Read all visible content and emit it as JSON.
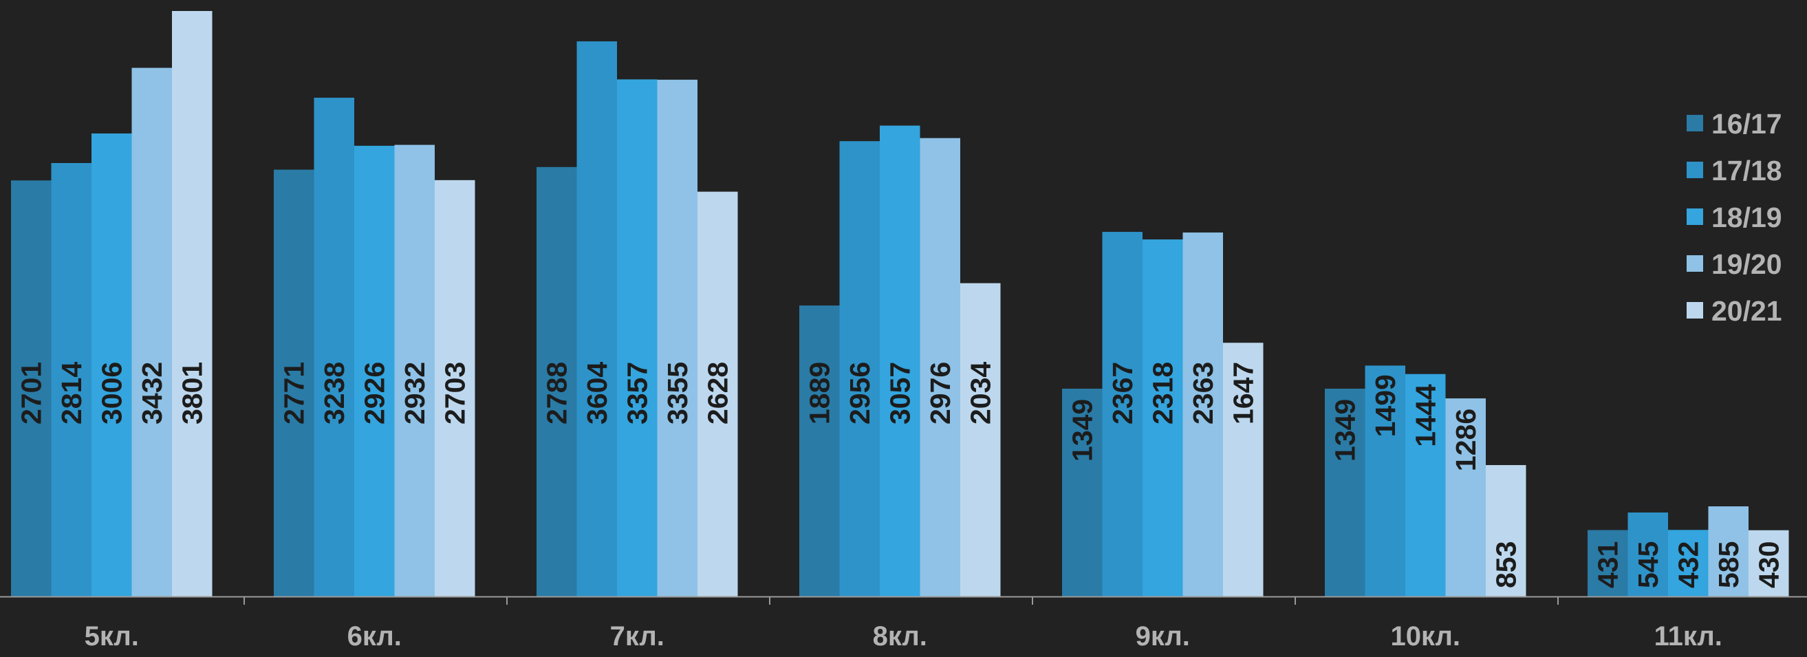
{
  "chart_data": {
    "type": "bar",
    "categories": [
      "5кл.",
      "6кл.",
      "7кл.",
      "8кл.",
      "9кл.",
      "10кл.",
      "11кл."
    ],
    "series": [
      {
        "name": "16/17",
        "color": "#2a7ba6",
        "values": [
          2701,
          2771,
          2788,
          1889,
          1349,
          1349,
          431
        ]
      },
      {
        "name": "17/18",
        "color": "#2e93c9",
        "values": [
          2814,
          3238,
          3604,
          2956,
          2367,
          1499,
          545
        ]
      },
      {
        "name": "18/19",
        "color": "#34a5de",
        "values": [
          3006,
          2926,
          3357,
          3057,
          2318,
          1444,
          432
        ]
      },
      {
        "name": "19/20",
        "color": "#8fc2e6",
        "values": [
          3432,
          2932,
          3355,
          2976,
          2363,
          1286,
          585
        ]
      },
      {
        "name": "20/21",
        "color": "#bdd8ee",
        "values": [
          3801,
          2703,
          2628,
          2034,
          1647,
          853,
          430
        ]
      }
    ],
    "ylim": [
      0,
      3801
    ],
    "grid": false,
    "legend_position": "right",
    "data_labels": "rotated inside bars",
    "text_color": "#b3b3b3",
    "label_color": "#1c1c1c"
  }
}
